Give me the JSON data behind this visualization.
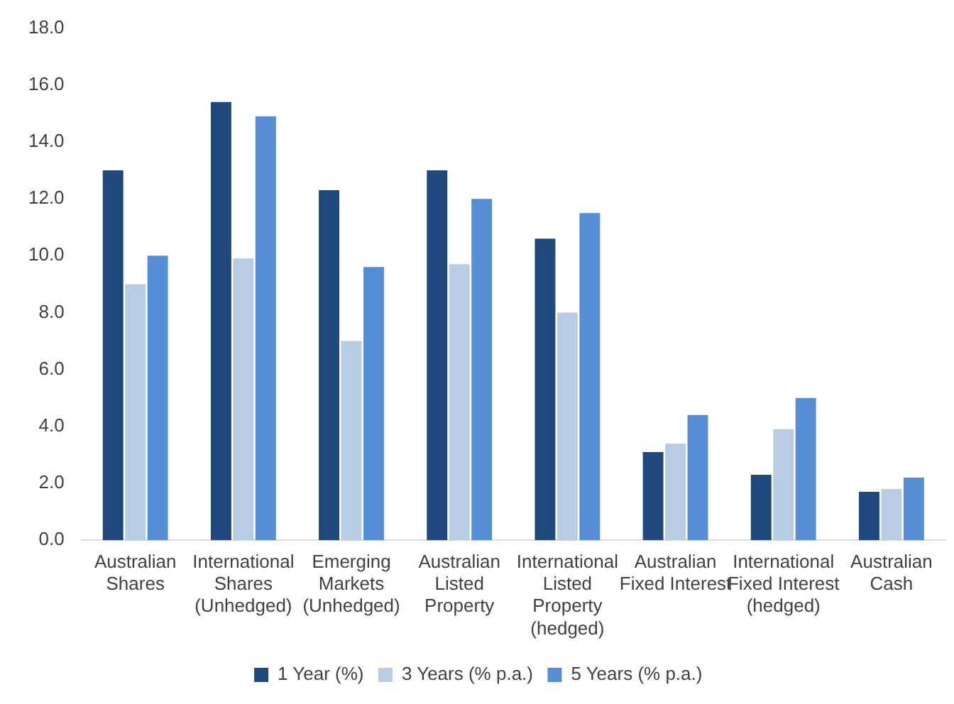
{
  "chart_data": {
    "type": "bar",
    "categories": [
      "Australian\nShares",
      "International\nShares\n(Unhedged)",
      "Emerging\nMarkets\n(Unhedged)",
      "Australian\nListed\nProperty",
      "International\nListed\nProperty\n(hedged)",
      "Australian\nFixed Interest",
      "International\nFixed Interest\n(hedged)",
      "Australian\nCash"
    ],
    "series": [
      {
        "name": "1 Year (%)",
        "color": "#1f497d",
        "values": [
          13.0,
          15.4,
          12.3,
          13.0,
          10.6,
          3.1,
          2.3,
          1.7
        ]
      },
      {
        "name": "3 Years (% p.a.)",
        "color": "#b8cce4",
        "values": [
          9.0,
          9.9,
          7.0,
          9.7,
          8.0,
          3.4,
          3.9,
          1.8
        ]
      },
      {
        "name": "5 Years (% p.a.)",
        "color": "#558ed5",
        "values": [
          10.0,
          14.9,
          9.6,
          12.0,
          11.5,
          4.4,
          5.0,
          2.2
        ]
      }
    ],
    "ylim": [
      0,
      18
    ],
    "yticks": [
      {
        "value": 0,
        "label": "0.0"
      },
      {
        "value": 2,
        "label": "2.0"
      },
      {
        "value": 4,
        "label": "4.0"
      },
      {
        "value": 6,
        "label": "6.0"
      },
      {
        "value": 8,
        "label": "8.0"
      },
      {
        "value": 10,
        "label": "10.0"
      },
      {
        "value": 12,
        "label": "12.0"
      },
      {
        "value": 14,
        "label": "14.0"
      },
      {
        "value": 16,
        "label": "16.0"
      },
      {
        "value": 18,
        "label": "18.0"
      }
    ],
    "grid": false,
    "legend": "bottom"
  }
}
